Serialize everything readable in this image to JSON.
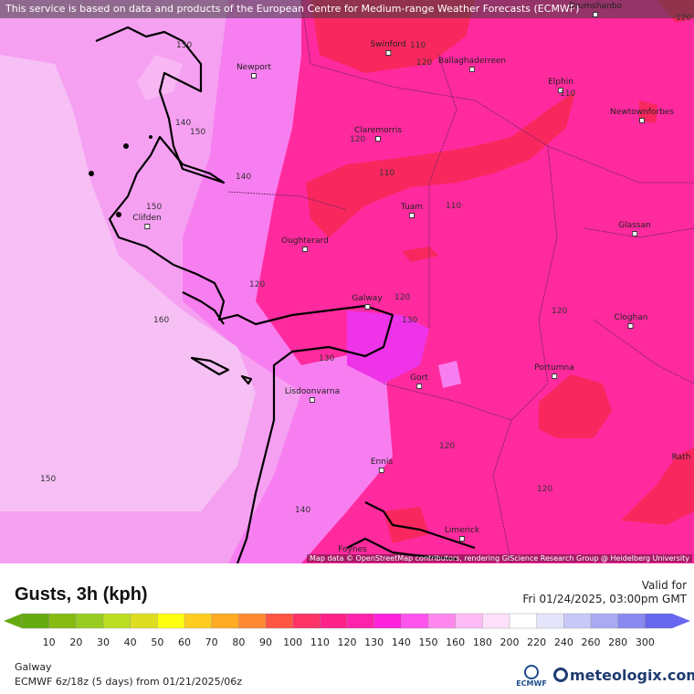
{
  "banner": "This service is based on data and products of the European Centre for Medium-range Weather Forecasts (ECMWF)",
  "map": {
    "attribution": "Map data © OpenStreetMap contributors, rendering GIScience Research Group @ Heidelberg University",
    "cities": [
      "Drumshanbo",
      "Swinford",
      "Ballaghaderreen",
      "Newport",
      "Elphin",
      "Newtownforbes",
      "Claremorris",
      "Tuam",
      "Glassan",
      "Clifden",
      "Oughterard",
      "Galway",
      "Cloghan",
      "Portumna",
      "Gort",
      "Lisdoonvarna",
      "Ennis",
      "Limerick",
      "Foynes",
      "Rath"
    ],
    "contour_labels": [
      "110",
      "120",
      "110",
      "120",
      "110",
      "150",
      "140",
      "150",
      "140",
      "110",
      "150",
      "120",
      "120",
      "160",
      "120",
      "130",
      "130",
      "120",
      "150",
      "120",
      "140",
      "120"
    ]
  },
  "legend": {
    "title": "Gusts, 3h (kph)",
    "valid_label": "Valid for",
    "valid_time": "Fri 01/24/2025, 03:00pm GMT",
    "ticks": [
      "10",
      "20",
      "30",
      "40",
      "50",
      "60",
      "70",
      "80",
      "90",
      "100",
      "110",
      "120",
      "130",
      "140",
      "150",
      "160",
      "180",
      "200",
      "220",
      "240",
      "260",
      "280",
      "300"
    ],
    "colors": [
      "#66aa11",
      "#88bb11",
      "#99cc22",
      "#bbdd22",
      "#dddd22",
      "#ffff11",
      "#ffcc22",
      "#ffaa22",
      "#ff8833",
      "#ff5544",
      "#ff3366",
      "#ff2288",
      "#ff22aa",
      "#ff22dd",
      "#ff55ee",
      "#ff88ee",
      "#ffbbf5",
      "#ffe0fa",
      "#ffffff",
      "#e4e4fb",
      "#c8c8f6",
      "#aaaaf2",
      "#8888ee",
      "#6666ee"
    ]
  },
  "footer": {
    "location": "Galway",
    "model": "ECMWF 6z/18z (5 days) from 01/21/2025/06z",
    "ecmwf_logo": "ECMWF",
    "brand": "meteologix.com"
  }
}
